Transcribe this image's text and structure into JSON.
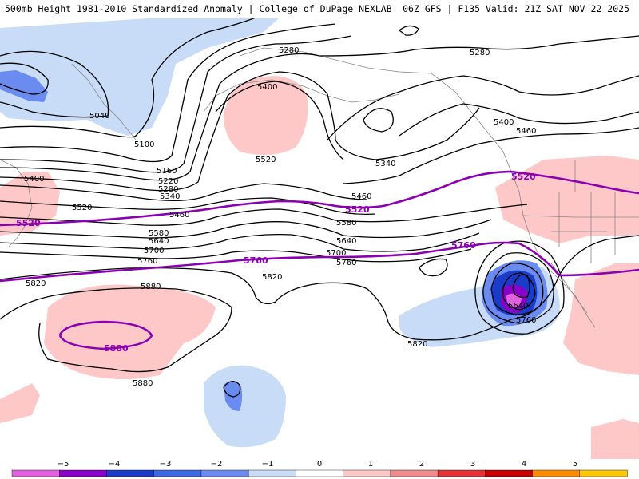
{
  "header": {
    "left_title": "500mb Height 1981-2010 Standardized Anomaly | College of DuPage NEXLAB",
    "right_title": "06Z GFS | F135 Valid: 21Z SAT NOV 22 2025"
  },
  "colors": {
    "contour": "#000000",
    "highlight_contour": "#8b00b0",
    "coast": "#888888",
    "positive_light": "#ffc8c8",
    "negative_light": "#c8dcf8",
    "negative_mid": "#6a8cf0",
    "negative_strong": "#1a3cc8",
    "negative_extreme": "#8b00c8"
  },
  "contour_labels": {
    "top_left": [
      "5040",
      "5100",
      "5160",
      "5220",
      "5280",
      "5340"
    ],
    "top_center": [
      "5280",
      "5400",
      "5520",
      "5340",
      "5460",
      "5580"
    ],
    "top_right": [
      "5280",
      "5400",
      "5460"
    ],
    "left_mid": [
      "5400",
      "5520",
      "5580",
      "5640",
      "5700",
      "5760",
      "5820",
      "5880"
    ],
    "center_mid": [
      "5460",
      "5640",
      "5700",
      "5760",
      "5820"
    ],
    "right_mid": [
      "5640",
      "5760",
      "5820"
    ],
    "bottom_left": [
      "5880"
    ]
  },
  "highlight_labels": {
    "h5520_left": "5520",
    "h5520_center": "5520",
    "h5520_right": "5520",
    "h5760_center": "5760",
    "h5760_right": "5760",
    "h5880": "5880"
  },
  "colorbar": {
    "ticks": [
      "−5",
      "−4",
      "−3",
      "−2",
      "−1",
      "0",
      "1",
      "2",
      "3",
      "4",
      "5"
    ],
    "colors": [
      "#e060e0",
      "#8b00c8",
      "#1a3cc8",
      "#3c6ae6",
      "#6a8cf0",
      "#c8dcf8",
      "#ffffff",
      "#ffc8c8",
      "#f08c8c",
      "#e63232",
      "#c80000",
      "#ff8c00",
      "#ffc800"
    ]
  }
}
